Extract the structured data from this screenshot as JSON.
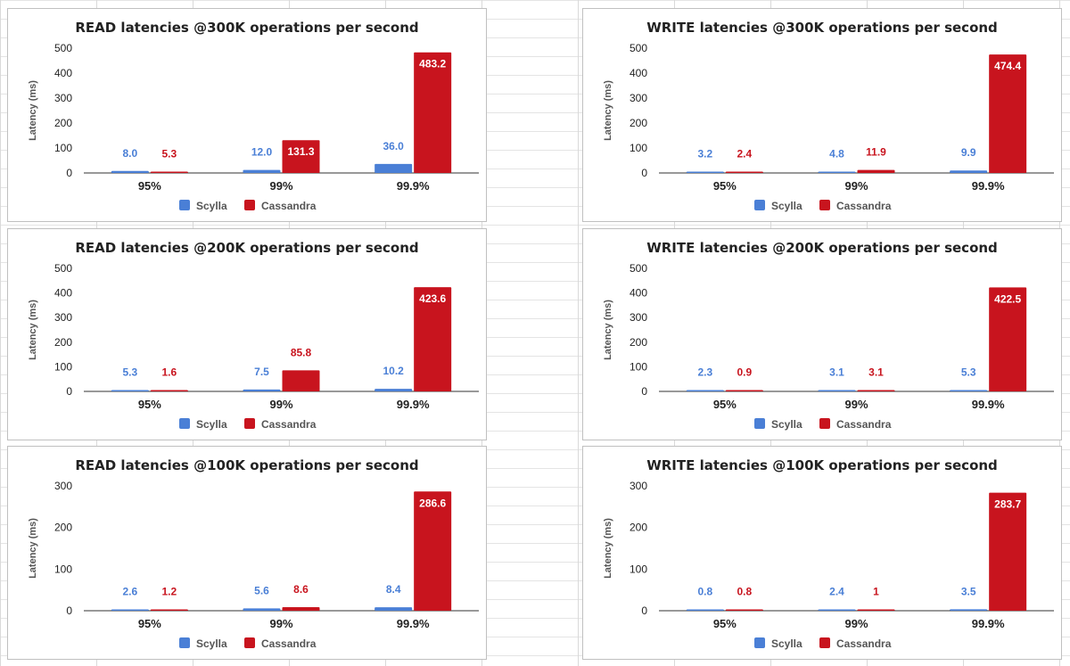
{
  "colors": {
    "scylla": "#4a7fd6",
    "cassandra": "#c8141e",
    "inside_label": "#ffffff"
  },
  "chart_data": [
    {
      "type": "bar",
      "title": "READ latencies @300K operations per second",
      "ylabel": "Latency (ms)",
      "categories": [
        "95%",
        "99%",
        "99.9%"
      ],
      "ylim": [
        0,
        500
      ],
      "yticks": [
        0,
        100,
        200,
        300,
        400,
        500
      ],
      "legend": "bottom",
      "series": [
        {
          "name": "Scylla",
          "values": [
            8.0,
            12.0,
            36.0
          ],
          "labels": [
            "8.0",
            "12.0",
            "36.0"
          ]
        },
        {
          "name": "Cassandra",
          "values": [
            5.3,
            131.3,
            483.2
          ],
          "labels": [
            "5.3",
            "131.3",
            "483.2"
          ]
        }
      ]
    },
    {
      "type": "bar",
      "title": "WRITE latencies @300K operations per second",
      "ylabel": "Latency (ms)",
      "categories": [
        "95%",
        "99%",
        "99.9%"
      ],
      "ylim": [
        0,
        500
      ],
      "yticks": [
        0,
        100,
        200,
        300,
        400,
        500
      ],
      "legend": "bottom",
      "series": [
        {
          "name": "Scylla",
          "values": [
            3.2,
            4.8,
            9.9
          ],
          "labels": [
            "3.2",
            "4.8",
            "9.9"
          ]
        },
        {
          "name": "Cassandra",
          "values": [
            2.4,
            11.9,
            474.4
          ],
          "labels": [
            "2.4",
            "11.9",
            "474.4"
          ]
        }
      ]
    },
    {
      "type": "bar",
      "title": "READ latencies @200K operations per second",
      "ylabel": "Latency (ms)",
      "categories": [
        "95%",
        "99%",
        "99.9%"
      ],
      "ylim": [
        0,
        500
      ],
      "yticks": [
        0,
        100,
        200,
        300,
        400,
        500
      ],
      "legend": "bottom",
      "series": [
        {
          "name": "Scylla",
          "values": [
            5.3,
            7.5,
            10.2
          ],
          "labels": [
            "5.3",
            "7.5",
            "10.2"
          ]
        },
        {
          "name": "Cassandra",
          "values": [
            1.6,
            85.8,
            423.6
          ],
          "labels": [
            "1.6",
            "85.8",
            "423.6"
          ]
        }
      ]
    },
    {
      "type": "bar",
      "title": "WRITE latencies @200K operations per second",
      "ylabel": "Latency (ms)",
      "categories": [
        "95%",
        "99%",
        "99.9%"
      ],
      "ylim": [
        0,
        500
      ],
      "yticks": [
        0,
        100,
        200,
        300,
        400,
        500
      ],
      "legend": "bottom",
      "series": [
        {
          "name": "Scylla",
          "values": [
            2.3,
            3.1,
            5.3
          ],
          "labels": [
            "2.3",
            "3.1",
            "5.3"
          ]
        },
        {
          "name": "Cassandra",
          "values": [
            0.9,
            3.1,
            422.5
          ],
          "labels": [
            "0.9",
            "3.1",
            "422.5"
          ]
        }
      ]
    },
    {
      "type": "bar",
      "title": "READ latencies @100K operations per second",
      "ylabel": "Latency (ms)",
      "categories": [
        "95%",
        "99%",
        "99.9%"
      ],
      "ylim": [
        0,
        300
      ],
      "yticks": [
        0,
        100,
        200,
        300
      ],
      "legend": "bottom",
      "series": [
        {
          "name": "Scylla",
          "values": [
            2.6,
            5.6,
            8.4
          ],
          "labels": [
            "2.6",
            "5.6",
            "8.4"
          ]
        },
        {
          "name": "Cassandra",
          "values": [
            1.2,
            8.6,
            286.6
          ],
          "labels": [
            "1.2",
            "8.6",
            "286.6"
          ]
        }
      ]
    },
    {
      "type": "bar",
      "title": "WRITE latencies @100K operations per second",
      "ylabel": "Latency (ms)",
      "categories": [
        "95%",
        "99%",
        "99.9%"
      ],
      "ylim": [
        0,
        300
      ],
      "yticks": [
        0,
        100,
        200,
        300
      ],
      "legend": "bottom",
      "series": [
        {
          "name": "Scylla",
          "values": [
            0.8,
            2.4,
            3.5
          ],
          "labels": [
            "0.8",
            "2.4",
            "3.5"
          ]
        },
        {
          "name": "Cassandra",
          "values": [
            0.8,
            1,
            283.7
          ],
          "labels": [
            "0.8",
            "1",
            "283.7"
          ]
        }
      ]
    }
  ]
}
